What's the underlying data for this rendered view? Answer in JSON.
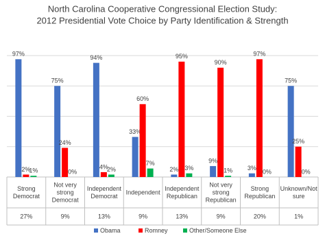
{
  "chart_data": {
    "type": "bar",
    "title": [
      "North Carolina Cooperative Congressional Election Study:",
      "2012 Presidential Vote Choice by Party Identification & Strength"
    ],
    "categories": [
      [
        "Strong",
        "Democrat"
      ],
      [
        "Not very",
        "strong",
        "Democrat"
      ],
      [
        "Independent",
        "Democrat"
      ],
      [
        "Independent"
      ],
      [
        "Independent",
        "Republican"
      ],
      [
        "Not very",
        "strong",
        "Republican"
      ],
      [
        "Strong",
        "Republican"
      ],
      [
        "Unknown/Not",
        "sure"
      ]
    ],
    "category_shares": [
      "27%",
      "9%",
      "13%",
      "9%",
      "13%",
      "9%",
      "20%",
      "1%"
    ],
    "series": [
      {
        "name": "Obama",
        "color": "#4472c4",
        "values": [
          97,
          75,
          94,
          33,
          2,
          9,
          3,
          75
        ],
        "value_labels": [
          "97%",
          "75%",
          "94%",
          "33%",
          "2%",
          "9%",
          "3%",
          "75%"
        ]
      },
      {
        "name": "Romney",
        "color": "#ff0000",
        "values": [
          2,
          24,
          4,
          60,
          95,
          90,
          97,
          25
        ],
        "value_labels": [
          "2%",
          "24%",
          "4%",
          "60%",
          "95%",
          "90%",
          "97%",
          "25%"
        ]
      },
      {
        "name": "Other/Someone Else",
        "color": "#00b050",
        "values": [
          1,
          0,
          2,
          7,
          3,
          1,
          0,
          0
        ],
        "value_labels": [
          "1%",
          "0%",
          "2%",
          "7%",
          "3%",
          "1%",
          "0%",
          "0%"
        ]
      }
    ],
    "ylim": [
      0,
      100
    ],
    "yticks": [
      25,
      50,
      75,
      100
    ],
    "grid": true
  }
}
